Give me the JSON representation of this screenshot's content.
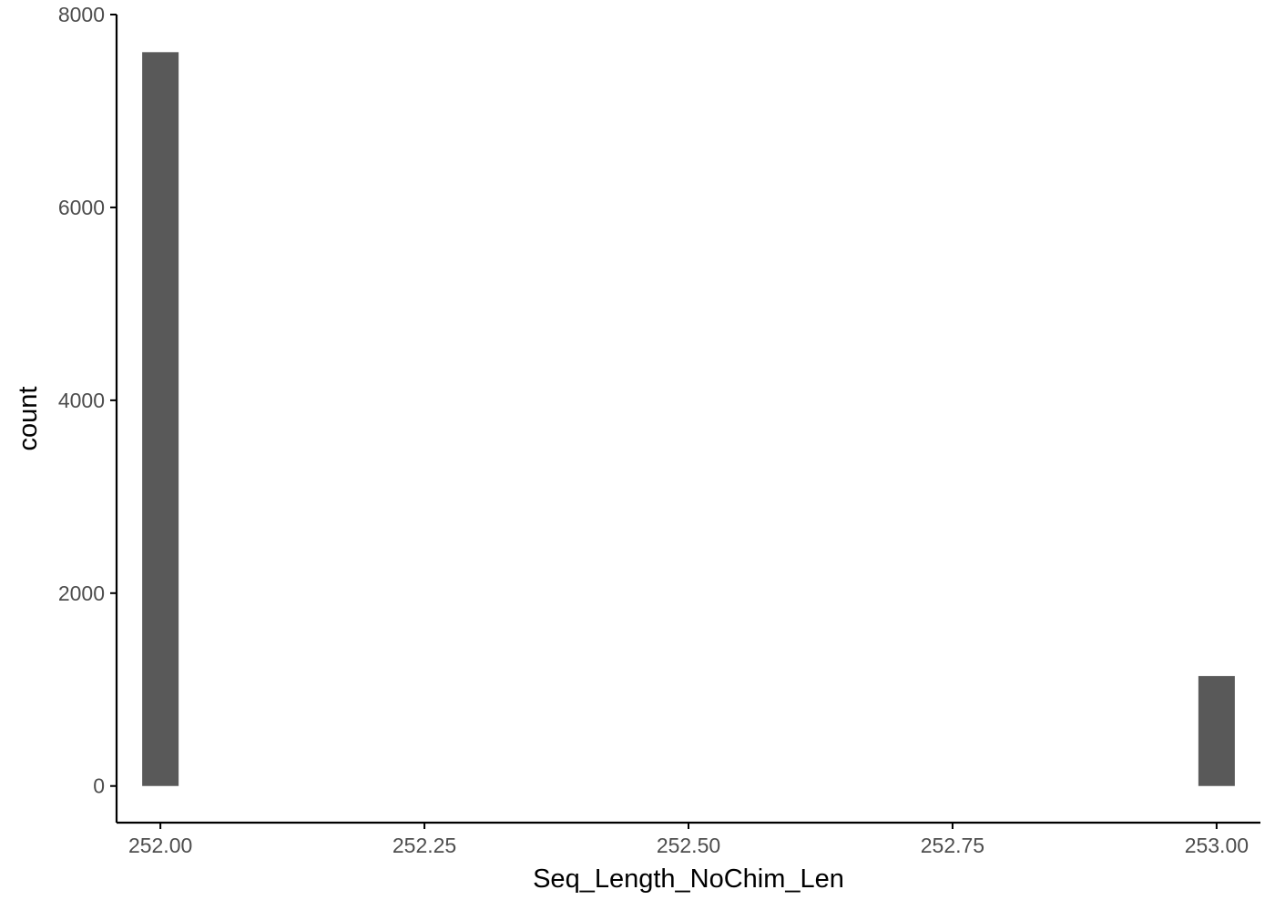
{
  "chart_data": {
    "type": "bar",
    "title": "",
    "xlabel": "Seq_Length_NoChim_Len",
    "ylabel": "count",
    "x_ticks": [
      "252.00",
      "252.25",
      "252.50",
      "252.75",
      "253.00"
    ],
    "x_tick_values": [
      252.0,
      252.25,
      252.5,
      252.75,
      253.0
    ],
    "y_ticks": [
      "0",
      "2000",
      "4000",
      "6000",
      "8000"
    ],
    "y_tick_values": [
      0,
      2000,
      4000,
      6000,
      8000
    ],
    "xlim": [
      251.9585,
      253.0415
    ],
    "ylim": [
      -380,
      8000
    ],
    "bar_width": 0.0345,
    "bars": [
      {
        "x": 252.0,
        "count": 7610
      },
      {
        "x": 253.0,
        "count": 1140
      }
    ],
    "grid": false,
    "legend": "none",
    "colors": {
      "bar": "#595959",
      "axis": "#000000",
      "tick_label": "#4d4d4d"
    }
  }
}
